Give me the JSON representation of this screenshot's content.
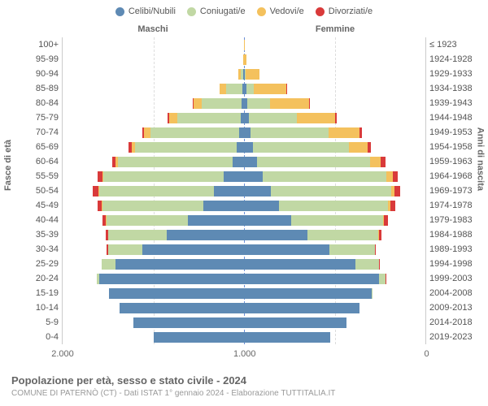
{
  "legend": [
    {
      "label": "Celibi/Nubili",
      "color": "#5e8ab4"
    },
    {
      "label": "Coniugati/e",
      "color": "#c1d8a4"
    },
    {
      "label": "Vedovi/e",
      "color": "#f4c15d"
    },
    {
      "label": "Divorziati/e",
      "color": "#d93a3a"
    }
  ],
  "gender": {
    "left": "Maschi",
    "right": "Femmine"
  },
  "axis": {
    "left_title": "Fasce di età",
    "right_title": "Anni di nascita",
    "xmax": 2000
  },
  "x_ticks": [
    {
      "pos": 0,
      "label": "2.000"
    },
    {
      "pos": 0.25,
      "label": "1.000"
    },
    {
      "pos": 0.5,
      "label": "0"
    },
    {
      "pos": 0.75,
      "label": "1.000"
    },
    {
      "pos": 1,
      "label": "2.000"
    }
  ],
  "rows": [
    {
      "age": "100+",
      "birth": "≤ 1923",
      "m": [
        0,
        0,
        0,
        0
      ],
      "f": [
        1,
        0,
        4,
        0
      ]
    },
    {
      "age": "95-99",
      "birth": "1924-1928",
      "m": [
        1,
        3,
        7,
        0
      ],
      "f": [
        2,
        0,
        28,
        0
      ]
    },
    {
      "age": "90-94",
      "birth": "1929-1933",
      "m": [
        5,
        30,
        30,
        0
      ],
      "f": [
        10,
        10,
        150,
        0
      ]
    },
    {
      "age": "85-89",
      "birth": "1934-1938",
      "m": [
        15,
        180,
        70,
        3
      ],
      "f": [
        25,
        80,
        360,
        5
      ]
    },
    {
      "age": "80-84",
      "birth": "1939-1943",
      "m": [
        25,
        440,
        95,
        8
      ],
      "f": [
        40,
        250,
        430,
        10
      ]
    },
    {
      "age": "75-79",
      "birth": "1944-1948",
      "m": [
        35,
        700,
        90,
        15
      ],
      "f": [
        55,
        530,
        420,
        18
      ]
    },
    {
      "age": "70-74",
      "birth": "1949-1953",
      "m": [
        50,
        980,
        70,
        25
      ],
      "f": [
        70,
        860,
        340,
        30
      ]
    },
    {
      "age": "65-69",
      "birth": "1954-1958",
      "m": [
        80,
        1120,
        40,
        30
      ],
      "f": [
        95,
        1060,
        210,
        38
      ]
    },
    {
      "age": "60-64",
      "birth": "1959-1963",
      "m": [
        130,
        1260,
        25,
        40
      ],
      "f": [
        140,
        1250,
        120,
        48
      ]
    },
    {
      "age": "55-59",
      "birth": "1964-1968",
      "m": [
        220,
        1330,
        15,
        50
      ],
      "f": [
        210,
        1360,
        70,
        55
      ]
    },
    {
      "age": "50-54",
      "birth": "1969-1973",
      "m": [
        330,
        1270,
        10,
        55
      ],
      "f": [
        300,
        1320,
        40,
        58
      ]
    },
    {
      "age": "45-49",
      "birth": "1974-1978",
      "m": [
        450,
        1110,
        6,
        50
      ],
      "f": [
        390,
        1200,
        22,
        55
      ]
    },
    {
      "age": "40-44",
      "birth": "1979-1983",
      "m": [
        620,
        900,
        3,
        40
      ],
      "f": [
        520,
        1010,
        12,
        45
      ]
    },
    {
      "age": "35-39",
      "birth": "1984-1988",
      "m": [
        850,
        650,
        1,
        25
      ],
      "f": [
        700,
        780,
        5,
        28
      ]
    },
    {
      "age": "30-34",
      "birth": "1989-1993",
      "m": [
        1120,
        380,
        0,
        12
      ],
      "f": [
        940,
        500,
        2,
        15
      ]
    },
    {
      "age": "25-29",
      "birth": "1994-1998",
      "m": [
        1420,
        150,
        0,
        4
      ],
      "f": [
        1230,
        260,
        0,
        6
      ]
    },
    {
      "age": "20-24",
      "birth": "1999-2003",
      "m": [
        1600,
        25,
        0,
        0
      ],
      "f": [
        1490,
        70,
        0,
        1
      ]
    },
    {
      "age": "15-19",
      "birth": "2004-2008",
      "m": [
        1490,
        0,
        0,
        0
      ],
      "f": [
        1410,
        2,
        0,
        0
      ]
    },
    {
      "age": "10-14",
      "birth": "2009-2013",
      "m": [
        1370,
        0,
        0,
        0
      ],
      "f": [
        1270,
        0,
        0,
        0
      ]
    },
    {
      "age": "5-9",
      "birth": "2014-2018",
      "m": [
        1220,
        0,
        0,
        0
      ],
      "f": [
        1130,
        0,
        0,
        0
      ]
    },
    {
      "age": "0-4",
      "birth": "2019-2023",
      "m": [
        1000,
        0,
        0,
        0
      ],
      "f": [
        950,
        0,
        0,
        0
      ]
    }
  ],
  "footer": {
    "title": "Popolazione per età, sesso e stato civile - 2024",
    "sub": "COMUNE DI PATERNÒ (CT) - Dati ISTAT 1° gennaio 2024 - Elaborazione TUTTITALIA.IT"
  }
}
